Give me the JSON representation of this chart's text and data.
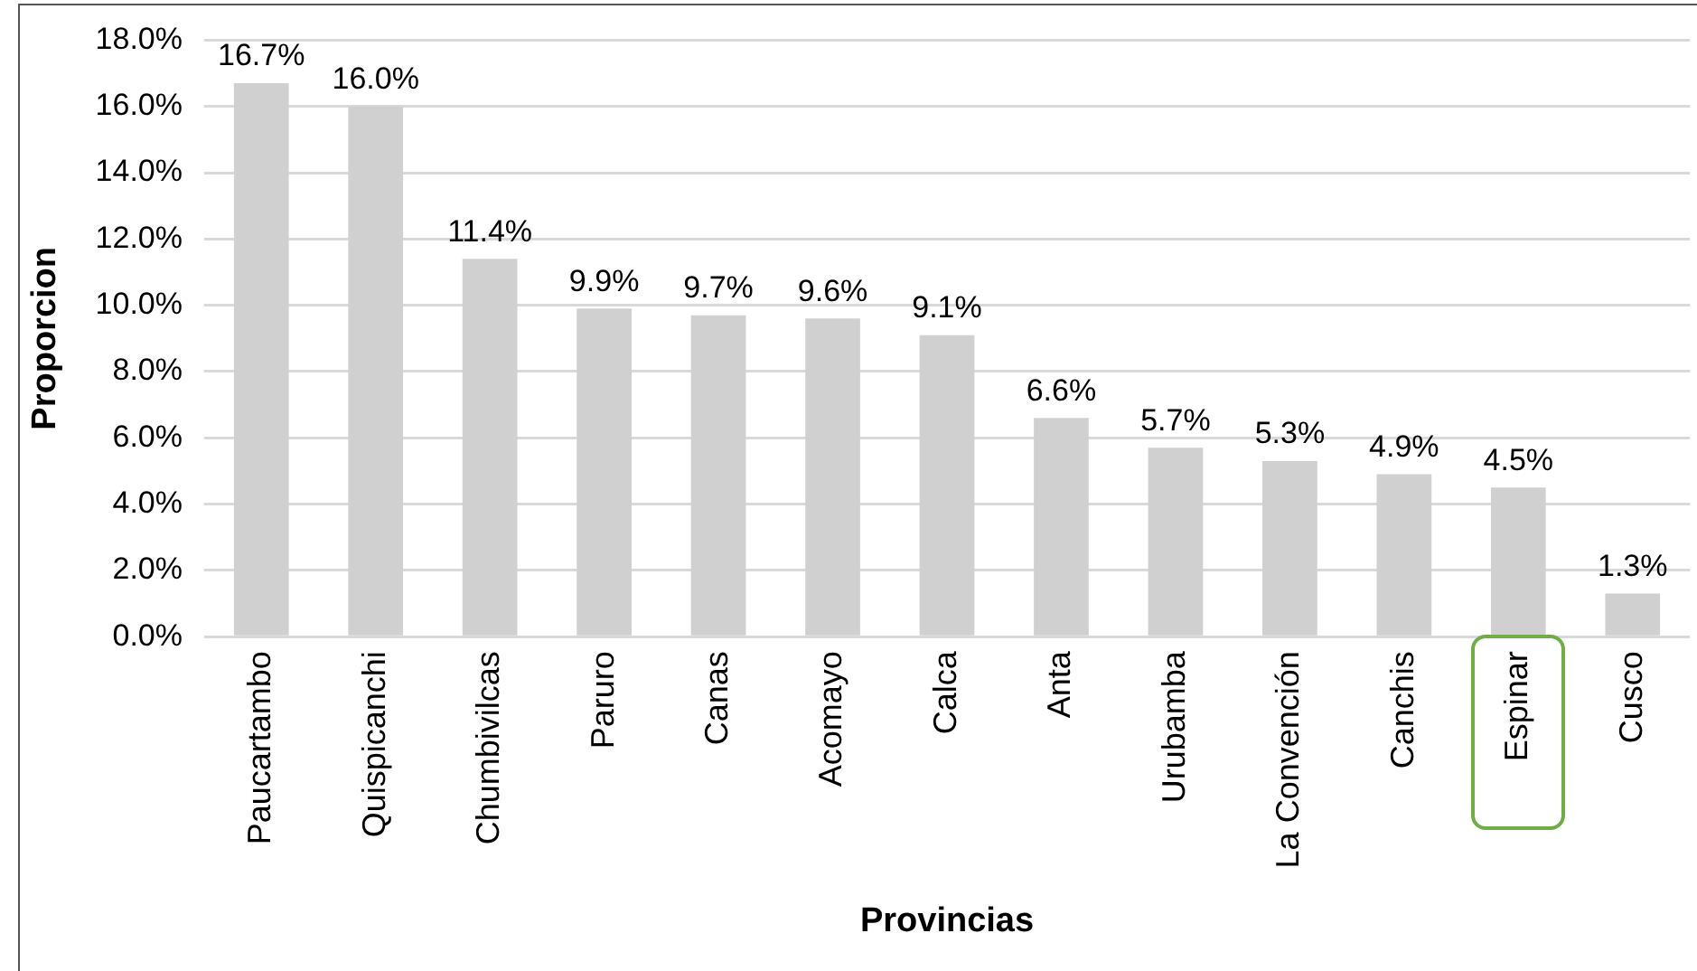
{
  "chart_data": {
    "type": "bar",
    "xlabel": "Provincias",
    "ylabel": "Proporcion",
    "categories": [
      "Paucartambo",
      "Quispicanchi",
      "Chumbivilcas",
      "Paruro",
      "Canas",
      "Acomayo",
      "Calca",
      "Anta",
      "Urubamba",
      "La Convención",
      "Canchis",
      "Espinar",
      "Cusco"
    ],
    "values": [
      16.7,
      16.0,
      11.4,
      9.9,
      9.7,
      9.6,
      9.1,
      6.6,
      5.7,
      5.3,
      4.9,
      4.5,
      1.3
    ],
    "value_labels": [
      "16.7%",
      "16.0%",
      "11.4%",
      "9.9%",
      "9.7%",
      "9.6%",
      "9.1%",
      "6.6%",
      "5.7%",
      "5.3%",
      "4.9%",
      "4.5%",
      "1.3%"
    ],
    "color": "#d0d0d0",
    "ylim": [
      0,
      18
    ],
    "yticks": [
      {
        "value": 0,
        "label": "0.0%"
      },
      {
        "value": 2,
        "label": "2.0%"
      },
      {
        "value": 4,
        "label": "4.0%"
      },
      {
        "value": 6,
        "label": "6.0%"
      },
      {
        "value": 8,
        "label": "8.0%"
      },
      {
        "value": 10,
        "label": "10.0%"
      },
      {
        "value": 12,
        "label": "12.0%"
      },
      {
        "value": 14,
        "label": "14.0%"
      },
      {
        "value": 16,
        "label": "16.0%"
      },
      {
        "value": 18,
        "label": "18.0%"
      }
    ],
    "grid": "y"
  }
}
